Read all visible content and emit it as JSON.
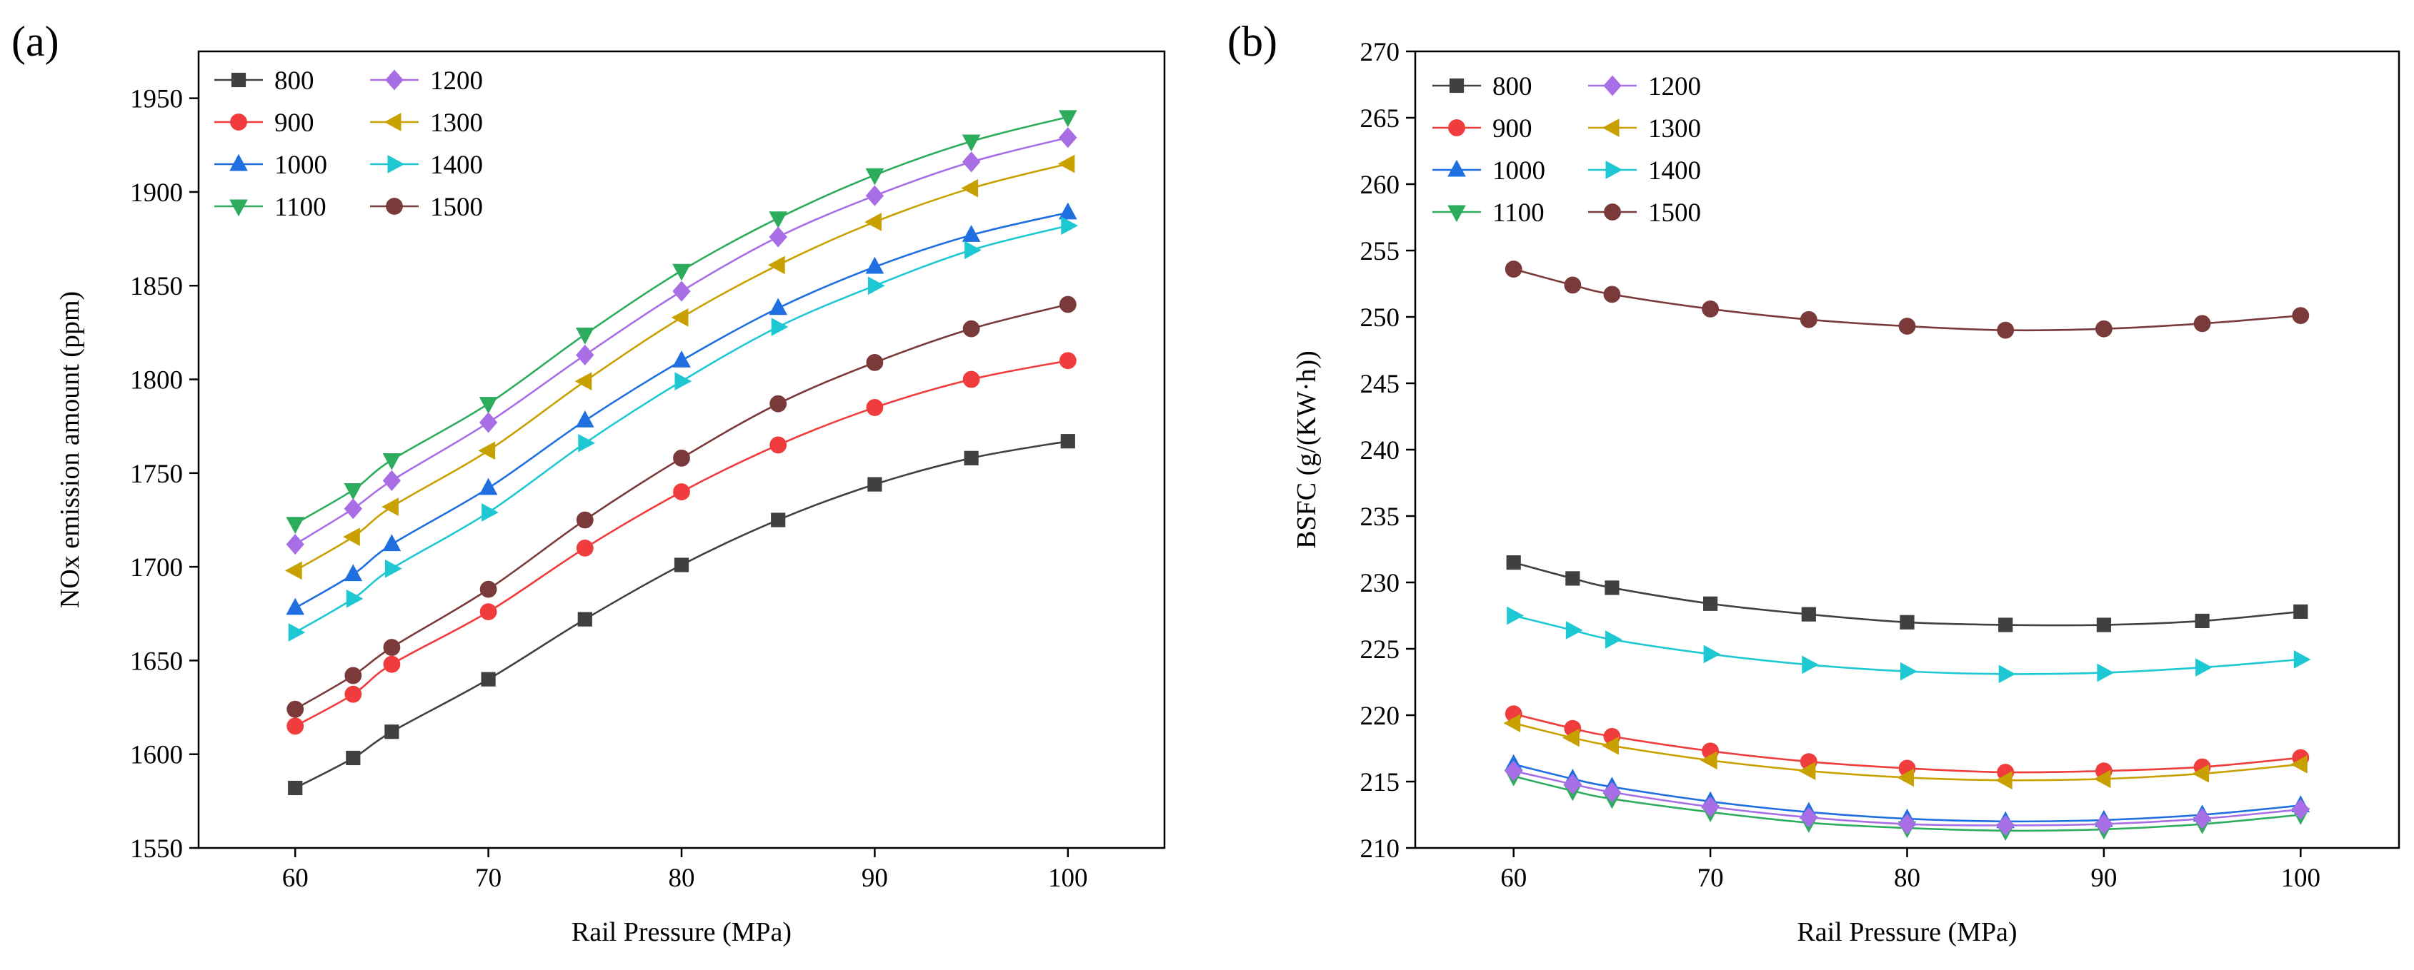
{
  "chart_data": [
    {
      "type": "line",
      "panel_label": "(a)",
      "title": "",
      "xlabel": "Rail Pressure (MPa)",
      "ylabel": "NOx emission amount (ppm)",
      "xlim": [
        55,
        105
      ],
      "ylim": [
        1550,
        1975
      ],
      "xticks": [
        60,
        70,
        80,
        90,
        100
      ],
      "yticks": [
        1550,
        1600,
        1650,
        1700,
        1750,
        1800,
        1850,
        1900,
        1950
      ],
      "grid": false,
      "legend_position": "top-left",
      "x": [
        60,
        63,
        65,
        70,
        75,
        80,
        85,
        90,
        95,
        100
      ],
      "series": [
        {
          "name": "800",
          "color": "#404040",
          "marker": "square",
          "values": [
            1582,
            1598,
            1612,
            1640,
            1672,
            1701,
            1725,
            1744,
            1758,
            1767
          ]
        },
        {
          "name": "900",
          "color": "#f03c3c",
          "marker": "circle",
          "values": [
            1615,
            1632,
            1648,
            1676,
            1710,
            1740,
            1765,
            1785,
            1800,
            1810
          ]
        },
        {
          "name": "1000",
          "color": "#1f6fe0",
          "marker": "triangle-up",
          "values": [
            1678,
            1696,
            1712,
            1742,
            1778,
            1810,
            1838,
            1860,
            1877,
            1889
          ]
        },
        {
          "name": "1100",
          "color": "#2eac5e",
          "marker": "triangle-down",
          "values": [
            1723,
            1741,
            1757,
            1787,
            1824,
            1858,
            1886,
            1909,
            1927,
            1940
          ]
        },
        {
          "name": "1200",
          "color": "#a86ee6",
          "marker": "diamond",
          "values": [
            1712,
            1731,
            1746,
            1777,
            1813,
            1847,
            1876,
            1898,
            1916,
            1929
          ]
        },
        {
          "name": "1300",
          "color": "#c8a000",
          "marker": "triangle-left",
          "values": [
            1698,
            1716,
            1732,
            1762,
            1799,
            1833,
            1861,
            1884,
            1902,
            1915
          ]
        },
        {
          "name": "1400",
          "color": "#1ec8d2",
          "marker": "triangle-right",
          "values": [
            1665,
            1683,
            1699,
            1729,
            1766,
            1799,
            1828,
            1850,
            1869,
            1882
          ]
        },
        {
          "name": "1500",
          "color": "#7a3a3a",
          "marker": "circle",
          "values": [
            1624,
            1642,
            1657,
            1688,
            1725,
            1758,
            1787,
            1809,
            1827,
            1840
          ]
        }
      ]
    },
    {
      "type": "line",
      "panel_label": "(b)",
      "title": "",
      "xlabel": "Rail Pressure (MPa)",
      "ylabel": "BSFC (g/(KW·h))",
      "xlim": [
        55,
        105
      ],
      "ylim": [
        210,
        270
      ],
      "xticks": [
        60,
        70,
        80,
        90,
        100
      ],
      "yticks": [
        210,
        215,
        220,
        225,
        230,
        235,
        240,
        245,
        250,
        255,
        260,
        265,
        270
      ],
      "grid": false,
      "legend_position": "top-left",
      "x": [
        60,
        63,
        65,
        70,
        75,
        80,
        85,
        90,
        95,
        100
      ],
      "series": [
        {
          "name": "800",
          "color": "#404040",
          "marker": "square",
          "values": [
            231.5,
            230.3,
            229.6,
            228.4,
            227.6,
            227.0,
            226.8,
            226.8,
            227.1,
            227.8
          ]
        },
        {
          "name": "900",
          "color": "#f03c3c",
          "marker": "circle",
          "values": [
            220.1,
            219.0,
            218.4,
            217.3,
            216.5,
            216.0,
            215.7,
            215.8,
            216.1,
            216.8
          ]
        },
        {
          "name": "1000",
          "color": "#1f6fe0",
          "marker": "triangle-up",
          "values": [
            216.3,
            215.2,
            214.6,
            213.5,
            212.7,
            212.2,
            212.0,
            212.1,
            212.5,
            213.2
          ]
        },
        {
          "name": "1100",
          "color": "#2eac5e",
          "marker": "triangle-down",
          "values": [
            215.4,
            214.3,
            213.7,
            212.7,
            211.9,
            211.5,
            211.3,
            211.4,
            211.8,
            212.5
          ]
        },
        {
          "name": "1200",
          "color": "#a86ee6",
          "marker": "diamond",
          "values": [
            215.8,
            214.8,
            214.2,
            213.1,
            212.3,
            211.8,
            211.7,
            211.8,
            212.2,
            212.9
          ]
        },
        {
          "name": "1300",
          "color": "#c8a000",
          "marker": "triangle-left",
          "values": [
            219.4,
            218.3,
            217.7,
            216.6,
            215.8,
            215.3,
            215.1,
            215.2,
            215.6,
            216.3
          ]
        },
        {
          "name": "1400",
          "color": "#1ec8d2",
          "marker": "triangle-right",
          "values": [
            227.5,
            226.4,
            225.7,
            224.6,
            223.8,
            223.3,
            223.1,
            223.2,
            223.6,
            224.2
          ]
        },
        {
          "name": "1500",
          "color": "#7a3a3a",
          "marker": "circle",
          "values": [
            253.6,
            252.4,
            251.7,
            250.6,
            249.8,
            249.3,
            249.0,
            249.1,
            249.5,
            250.1
          ]
        }
      ]
    }
  ]
}
